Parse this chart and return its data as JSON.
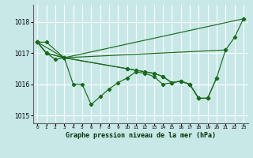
{
  "xlabel": "Graphe pression niveau de la mer (hPa)",
  "ylim": [
    1014.75,
    1018.55
  ],
  "xlim": [
    -0.5,
    23.5
  ],
  "yticks": [
    1015,
    1016,
    1017,
    1018
  ],
  "xticks": [
    0,
    1,
    2,
    3,
    4,
    5,
    6,
    7,
    8,
    9,
    10,
    11,
    12,
    13,
    14,
    15,
    16,
    17,
    18,
    19,
    20,
    21,
    22,
    23
  ],
  "bg_color": "#c8e8e8",
  "grid_color": "#ffffff",
  "line_color": "#1a6b1a",
  "lines": [
    {
      "x": [
        0,
        1,
        3,
        23
      ],
      "y": [
        1017.35,
        1017.35,
        1016.85,
        1018.1
      ],
      "has_markers": true
    },
    {
      "x": [
        0,
        1,
        2,
        3,
        4,
        5,
        6,
        7,
        8,
        9,
        10,
        11,
        12,
        13,
        14,
        15,
        16,
        17,
        18,
        19,
        20,
        21,
        22,
        23
      ],
      "y": [
        1017.35,
        1017.0,
        1016.8,
        1016.85,
        1016.0,
        1016.0,
        1015.35,
        1015.6,
        1015.85,
        1016.05,
        1016.2,
        1016.4,
        1016.35,
        1016.25,
        1016.0,
        1016.05,
        1016.1,
        1016.0,
        1015.55,
        1015.55,
        1016.2,
        1017.1,
        1017.5,
        1018.1
      ],
      "has_markers": true
    },
    {
      "x": [
        0,
        1,
        3,
        10,
        11,
        12,
        13,
        14,
        15,
        16,
        17,
        18,
        19,
        20
      ],
      "y": [
        1017.35,
        1017.0,
        1016.85,
        1016.5,
        1016.45,
        1016.4,
        1016.35,
        1016.25,
        1016.05,
        1016.1,
        1016.0,
        1015.55,
        1015.55,
        1016.2
      ],
      "has_markers": true
    },
    {
      "x": [
        0,
        1,
        3,
        10,
        11,
        12,
        13,
        14,
        15,
        16,
        17,
        18,
        19
      ],
      "y": [
        1017.35,
        1017.0,
        1016.85,
        1016.5,
        1016.45,
        1016.4,
        1016.35,
        1016.25,
        1016.05,
        1016.1,
        1016.0,
        1015.55,
        1015.55
      ],
      "has_markers": true
    },
    {
      "x": [
        0,
        3,
        21
      ],
      "y": [
        1017.35,
        1016.85,
        1017.1
      ],
      "has_markers": true
    }
  ]
}
